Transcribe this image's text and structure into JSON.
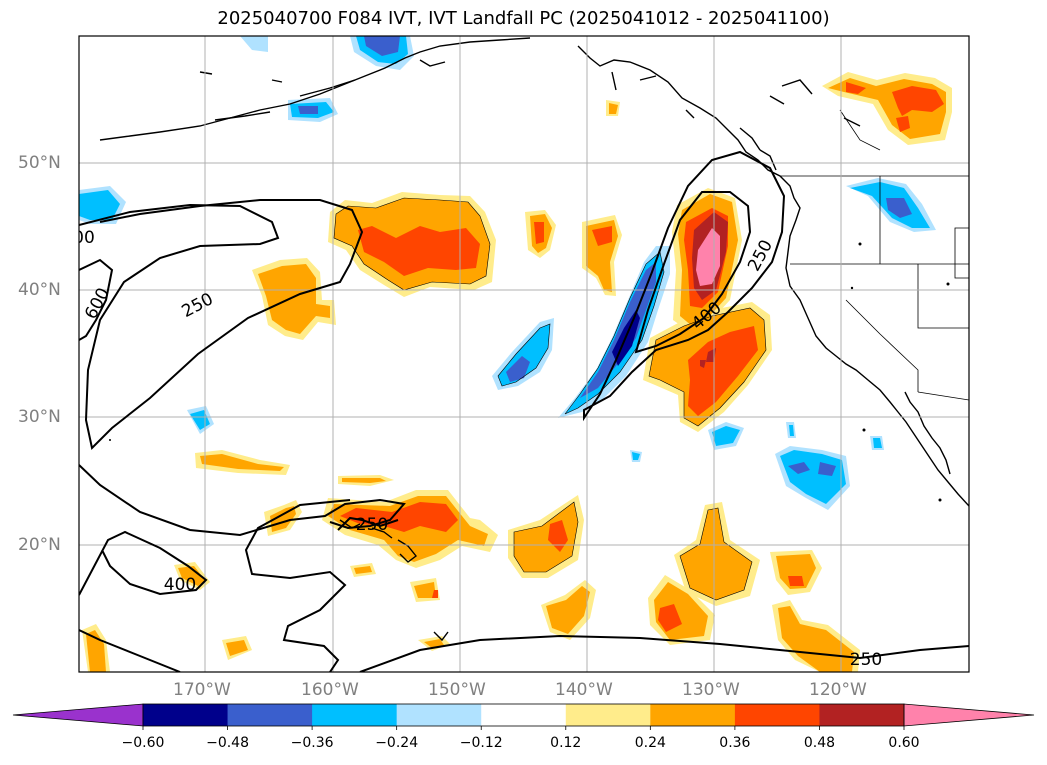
{
  "title": "2025040700 F084 IVT, IVT Landfall PC (2025041012 - 2025041100)",
  "lat_labels": [
    "50°N",
    "40°N",
    "30°N",
    "20°N"
  ],
  "lon_labels": [
    "170°W",
    "160°W",
    "150°W",
    "140°W",
    "130°W",
    "120°W"
  ],
  "contour_labels": [
    "250",
    "250",
    "250",
    "250",
    "400",
    "400",
    "600",
    "00"
  ],
  "colorbar": {
    "ticks": [
      "−0.60",
      "−0.48",
      "−0.36",
      "−0.24",
      "−0.12",
      "0.12",
      "0.24",
      "0.36",
      "0.48",
      "0.60"
    ],
    "colors": [
      "#9a32cd",
      "#00008b",
      "#3a5fcd",
      "#00bfff",
      "#b0e2ff",
      "#ffffff",
      "#ffec8b",
      "#ffa500",
      "#ff4500",
      "#b22222",
      "#ff82ab"
    ]
  }
}
